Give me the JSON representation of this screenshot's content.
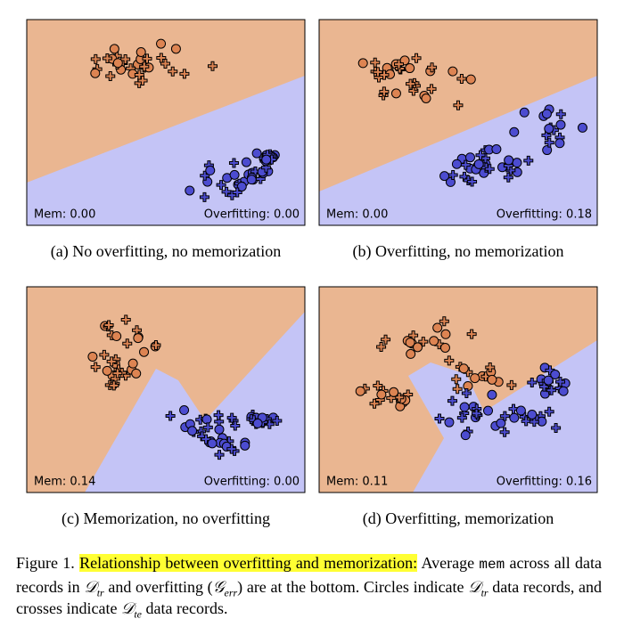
{
  "panels": [
    {
      "mem": "Mem: 0.00",
      "overfitting": "Overfitting: 0.00",
      "caption": "(a) No overfitting, no memorization"
    },
    {
      "mem": "Mem: 0.00",
      "overfitting": "Overfitting: 0.18",
      "caption": "(b) Overfitting, no memorization"
    },
    {
      "mem": "Mem: 0.14",
      "overfitting": "Overfitting: 0.00",
      "caption": "(c) Memorization, no overfitting"
    },
    {
      "mem": "Mem: 0.11",
      "overfitting": "Overfitting: 0.16",
      "caption": "(d) Overfitting, memorization"
    }
  ],
  "caption": {
    "label": "Figure 1.",
    "highlight": "Relationship between overfitting and memorization:",
    "parts": [
      "Average",
      "mem",
      "across all data records in",
      "𝒟",
      "tr",
      "and overfitting (",
      "𝒢",
      "err",
      ") are at the bottom. Circles indicate",
      "𝒟",
      "tr",
      "data records, and crosses indicate",
      "𝒟",
      "te",
      "data records."
    ]
  }
}
